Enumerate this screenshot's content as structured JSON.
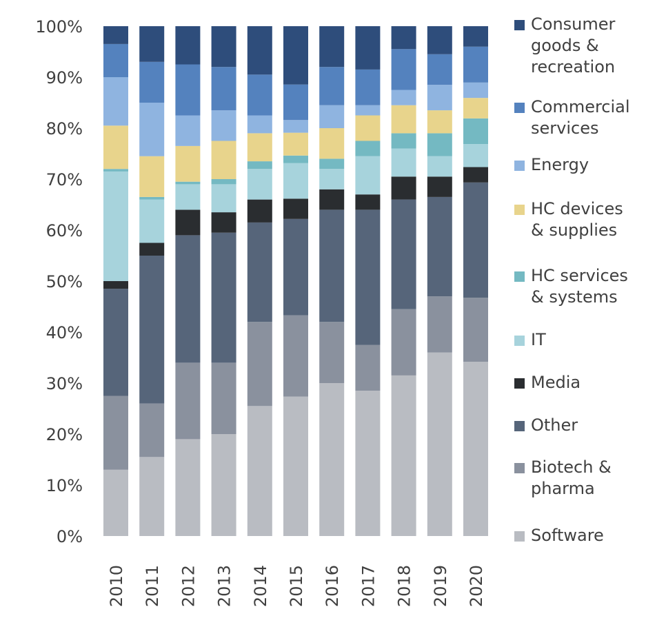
{
  "chart_data": {
    "type": "bar",
    "stacked": true,
    "categories": [
      "2010",
      "2011",
      "2012",
      "2013",
      "2014",
      "2015",
      "2016",
      "2017",
      "2018",
      "2019",
      "2020"
    ],
    "ylim": [
      0,
      100
    ],
    "y_ticks": [
      "0%",
      "10%",
      "20%",
      "30%",
      "40%",
      "50%",
      "60%",
      "70%",
      "80%",
      "90%",
      "100%"
    ],
    "grid": false,
    "legend_position": "right",
    "series": [
      {
        "name": "Software",
        "color": "#b9bcc2",
        "values": [
          13,
          15.5,
          19,
          20,
          25.5,
          27.5,
          30,
          28.5,
          31.5,
          36,
          34
        ]
      },
      {
        "name": "Biotech & pharma",
        "color": "#8a919e",
        "values": [
          14.5,
          10.5,
          15,
          14,
          16.5,
          16,
          12,
          9,
          13,
          11,
          12.5
        ]
      },
      {
        "name": "Other",
        "color": "#56657a",
        "values": [
          21,
          29,
          25,
          25.5,
          19.5,
          19,
          22,
          26.5,
          21.5,
          19.5,
          22.5
        ]
      },
      {
        "name": "Media",
        "color": "#2a2d30",
        "values": [
          1.5,
          2.5,
          5,
          4,
          4.5,
          4,
          4,
          3,
          4.5,
          4,
          3
        ]
      },
      {
        "name": "IT",
        "color": "#a7d3dc",
        "values": [
          21.5,
          8.5,
          5,
          5.5,
          6,
          7,
          4,
          7.5,
          5.5,
          4,
          4.5
        ]
      },
      {
        "name": "HC services & systems",
        "color": "#74b9c2",
        "values": [
          0.5,
          0.5,
          0.5,
          1,
          1.5,
          1.5,
          2,
          3,
          3,
          4.5,
          5
        ]
      },
      {
        "name": "HC devices & supplies",
        "color": "#e8d48c",
        "values": [
          8.5,
          8,
          7,
          7.5,
          5.5,
          4.5,
          6,
          5,
          5.5,
          4.5,
          4
        ]
      },
      {
        "name": "Energy",
        "color": "#8fb4e0",
        "values": [
          9.5,
          10.5,
          6,
          6,
          3.5,
          2.5,
          4.5,
          2,
          3,
          5,
          3
        ]
      },
      {
        "name": "Commercial services",
        "color": "#5482be",
        "values": [
          6.5,
          8,
          10,
          8.5,
          8,
          7,
          7.5,
          7,
          8,
          6,
          7
        ]
      },
      {
        "name": "Consumer goods & recreation",
        "color": "#2e4d7b",
        "values": [
          3.5,
          7,
          7.5,
          8,
          9.5,
          11.5,
          8,
          8.5,
          4.5,
          5.5,
          4
        ]
      }
    ],
    "legend": [
      {
        "label": "Consumer\ngoods &\nrecreation",
        "color": "#2e4d7b"
      },
      {
        "label": "Commercial\nservices",
        "color": "#5482be"
      },
      {
        "label": "Energy",
        "color": "#8fb4e0"
      },
      {
        "label": "HC devices\n& supplies",
        "color": "#e8d48c"
      },
      {
        "label": "HC services\n& systems",
        "color": "#74b9c2"
      },
      {
        "label": "IT",
        "color": "#a7d3dc"
      },
      {
        "label": "Media",
        "color": "#2a2d30"
      },
      {
        "label": "Other",
        "color": "#56657a"
      },
      {
        "label": "Biotech &\npharma",
        "color": "#8a919e"
      },
      {
        "label": "Software",
        "color": "#b9bcc2"
      }
    ]
  }
}
